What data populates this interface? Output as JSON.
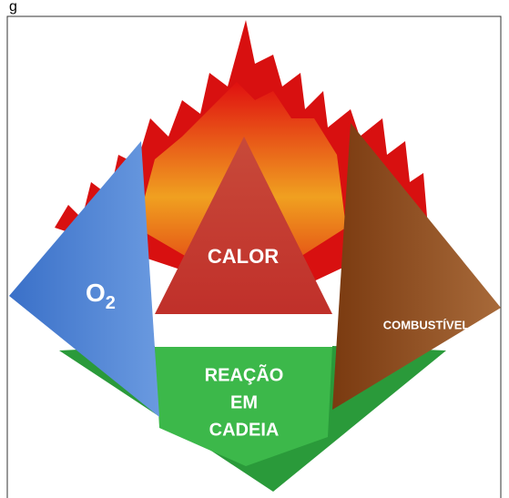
{
  "caption": "g",
  "faces": {
    "left": {
      "label": "O",
      "subscript": "2"
    },
    "top": "CALOR",
    "right": "COMBUSTÍVEL",
    "bottom": [
      "REAÇÃO",
      "EM",
      "CADEIA"
    ]
  }
}
